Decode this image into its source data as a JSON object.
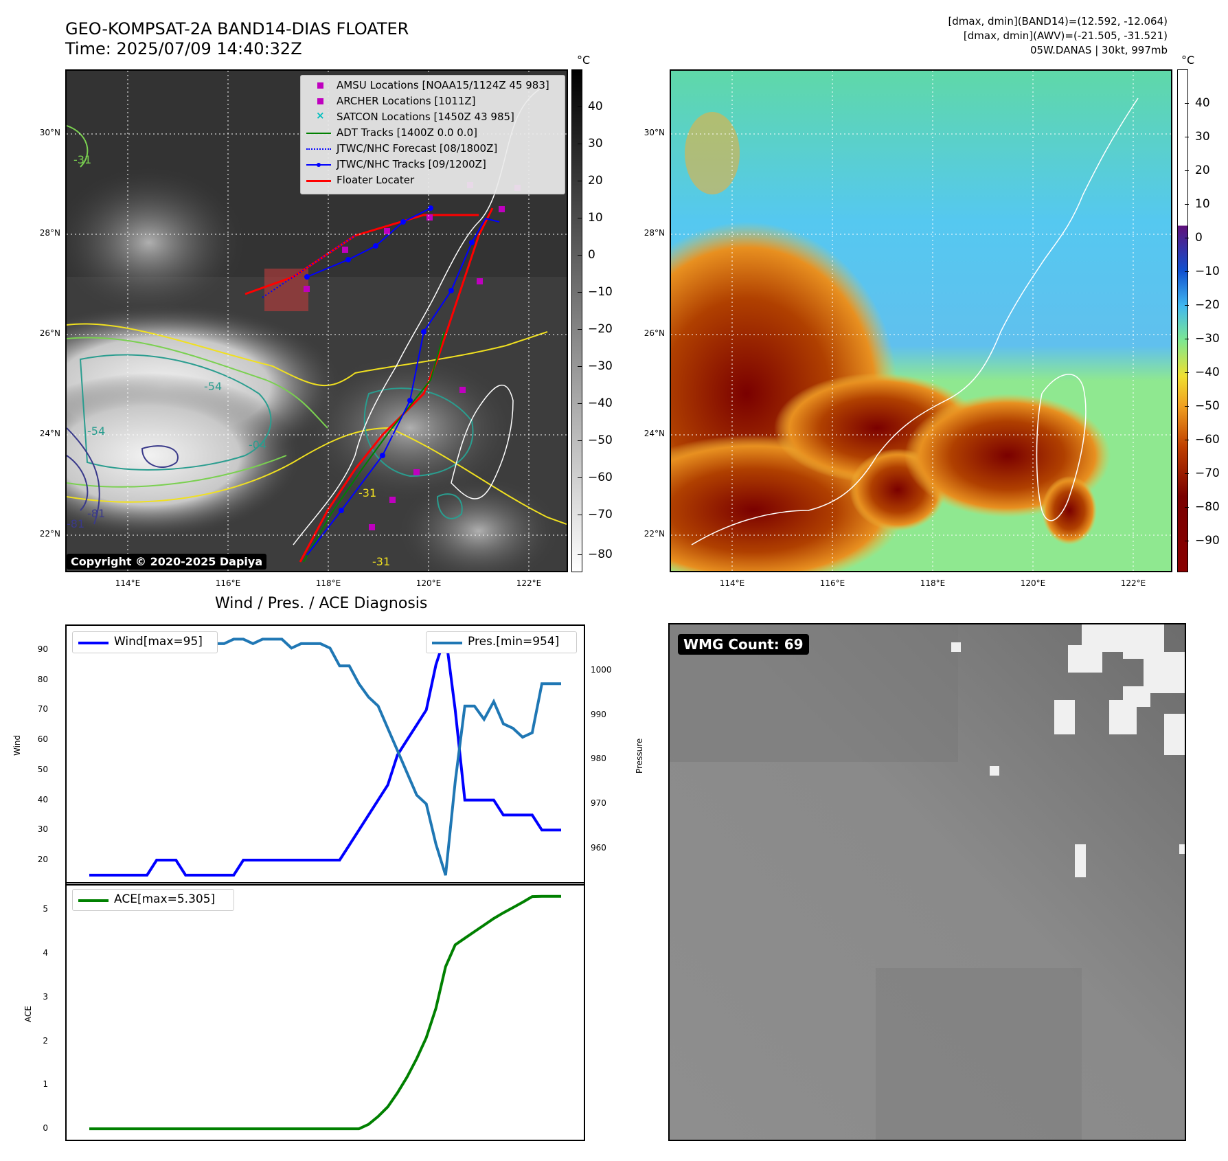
{
  "header": {
    "title_line1": "GEO-KOMPSAT-2A BAND14-DIAS FLOATER",
    "title_line2": "Time: 2025/07/09 14:40:32Z",
    "info_line1": "[dmax, dmin](BAND14)=(12.592, -12.064)",
    "info_line2": "[dmax, dmin](AWV)=(-21.505, -31.521)",
    "info_line3": "05W.DANAS | 30kt, 997mb"
  },
  "map": {
    "lat_labels": [
      "30°N",
      "28°N",
      "26°N",
      "24°N",
      "22°N"
    ],
    "lon_labels": [
      "114°E",
      "116°E",
      "118°E",
      "120°E",
      "122°E"
    ],
    "copyright": "Copyright © 2020-2025 Dapiya",
    "legend": [
      {
        "label": "AMSU Locations [NOAA15/1124Z 45 983]",
        "color": "#bf00bf",
        "marker": "square"
      },
      {
        "label": "ARCHER Locations [1011Z]",
        "color": "#bf00bf",
        "marker": "square"
      },
      {
        "label": "SATCON Locations [1450Z 43 985]",
        "color": "#00bfbf",
        "marker": "x"
      },
      {
        "label": "ADT Tracks [1400Z 0.0 0.0]",
        "color": "#008000",
        "marker": "line"
      },
      {
        "label": "JTWC/NHC Forecast [08/1800Z]",
        "color": "#0000ff",
        "marker": "dotted"
      },
      {
        "label": "JTWC/NHC Tracks [09/1200Z]",
        "color": "#0000ff",
        "marker": "line-dot"
      },
      {
        "label": "Floater Locater",
        "color": "#ff0000",
        "marker": "line"
      }
    ],
    "contour_labels": [
      "-31",
      "-54",
      "-54",
      "-81",
      "-81",
      "-04",
      "-31",
      "-31"
    ]
  },
  "colorbar_left": {
    "unit": "°C",
    "ticks": [
      "40",
      "30",
      "20",
      "10",
      "0",
      "−10",
      "−20",
      "−30",
      "−40",
      "−50",
      "−60",
      "−70",
      "−80"
    ]
  },
  "colorbar_right": {
    "unit": "°C",
    "ticks": [
      "40",
      "30",
      "20",
      "10",
      "0",
      "−10",
      "−20",
      "−30",
      "−40",
      "−50",
      "−60",
      "−70",
      "−80",
      "−90"
    ]
  },
  "diag": {
    "title": "Wind / Pres. / ACE Diagnosis",
    "wind_ylabel": "Wind",
    "pres_ylabel": "Pressure",
    "ace_ylabel": "ACE",
    "wind_ticks": [
      "90",
      "80",
      "70",
      "60",
      "50",
      "40",
      "30",
      "20"
    ],
    "pres_ticks": [
      "1000",
      "990",
      "980",
      "970",
      "960"
    ],
    "ace_ticks": [
      "5",
      "4",
      "3",
      "2",
      "1",
      "0"
    ],
    "wind_legend": "Wind[max=95]",
    "pres_legend": "Pres.[min=954]",
    "ace_legend": "ACE[max=5.305]",
    "wind_color": "#0000ff",
    "pres_color": "#1f77b4",
    "ace_color": "#008000"
  },
  "wmg": {
    "label": "WMG Count: 69"
  },
  "chart_data": [
    {
      "type": "line",
      "title": "Wind / Pres. / ACE Diagnosis",
      "ylabel": "Wind",
      "ylim": [
        12,
        98
      ],
      "series": [
        {
          "name": "Wind[max=95]",
          "values": [
            15,
            15,
            15,
            15,
            15,
            15,
            15,
            20,
            20,
            20,
            15,
            15,
            15,
            15,
            15,
            15,
            20,
            20,
            20,
            20,
            20,
            20,
            20,
            20,
            20,
            20,
            20,
            25,
            30,
            35,
            40,
            45,
            55,
            60,
            65,
            70,
            85,
            95,
            70,
            40,
            40,
            40,
            40,
            35,
            35,
            35,
            35,
            30,
            30,
            30
          ]
        }
      ]
    },
    {
      "type": "line",
      "ylabel": "Pressure",
      "ylim": [
        952,
        1010
      ],
      "series": [
        {
          "name": "Pres.[min=954]",
          "values": [
            1007,
            1007,
            1007,
            1007,
            1007,
            1005,
            1005,
            1005,
            1005,
            1005,
            1005,
            1006,
            1006,
            1006,
            1006,
            1007,
            1007,
            1006,
            1007,
            1007,
            1007,
            1005,
            1006,
            1006,
            1006,
            1005,
            1001,
            1001,
            997,
            994,
            992,
            987,
            982,
            977,
            972,
            970,
            961,
            954,
            975,
            992,
            992,
            989,
            993,
            988,
            987,
            985,
            986,
            997,
            997,
            997
          ]
        }
      ]
    },
    {
      "type": "line",
      "ylabel": "ACE",
      "ylim": [
        -0.25,
        5.6
      ],
      "series": [
        {
          "name": "ACE[max=5.305]",
          "values": [
            0,
            0,
            0,
            0,
            0,
            0,
            0,
            0,
            0,
            0,
            0,
            0,
            0,
            0,
            0,
            0,
            0,
            0,
            0,
            0,
            0,
            0,
            0,
            0,
            0,
            0,
            0,
            0,
            0,
            0.1,
            0.28,
            0.5,
            0.82,
            1.18,
            1.6,
            2.08,
            2.75,
            3.7,
            4.2,
            4.35,
            4.5,
            4.65,
            4.8,
            4.93,
            5.05,
            5.17,
            5.3,
            5.305,
            5.305,
            5.305
          ]
        }
      ]
    }
  ]
}
